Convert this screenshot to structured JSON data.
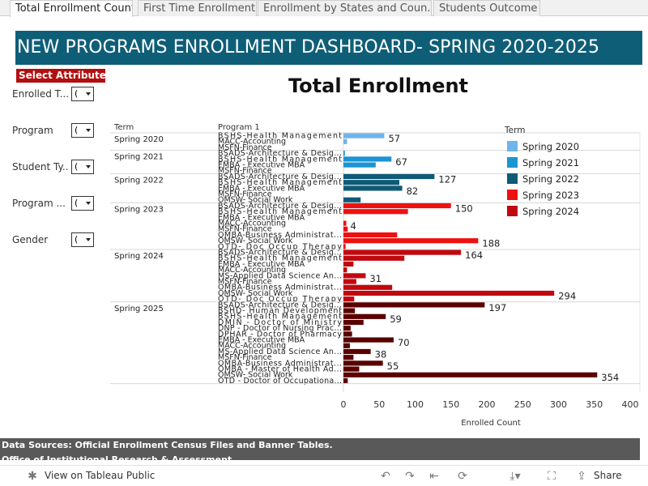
{
  "tabs": [
    "Total Enrollment Count",
    "First Time Enrollment",
    "Enrollment by States and Coun...",
    "Students Outcome"
  ],
  "header": {
    "title": "NEW PROGRAMS ENROLLMENT DASHBOARD- SPRING 2020-2025"
  },
  "filters": {
    "heading": "Select  Attributes",
    "items": [
      {
        "label": "Enrolled T...",
        "value": "("
      },
      {
        "label": "Program",
        "value": "("
      },
      {
        "label": "Student Ty...",
        "value": "("
      },
      {
        "label": "Program ...",
        "value": "("
      },
      {
        "label": "Gender",
        "value": "("
      }
    ]
  },
  "colors": {
    "header_bg": "#0f5e78",
    "select_attrs_bg": "#b20f0f",
    "Spring 2020": "#6fb4ea",
    "Spring 2021": "#1b94d3",
    "Spring 2022": "#0f5a77",
    "Spring 2023": "#ee1111",
    "Spring 2024": "#c0090f",
    "Spring 2025": "#5a0000"
  },
  "chart_data": {
    "type": "bar",
    "orientation": "horizontal",
    "title": "Total Enrollment",
    "row_headers": [
      "Term",
      "Program 1"
    ],
    "xlabel": "Enrolled Count",
    "xlim": [
      0,
      400
    ],
    "xticks": [
      0,
      50,
      100,
      150,
      200,
      250,
      300,
      350,
      400
    ],
    "legend": {
      "title": "Term",
      "placement": "right",
      "items": [
        "Spring 2020",
        "Spring 2021",
        "Spring 2022",
        "Spring 2023",
        "Spring 2024"
      ]
    },
    "groups": [
      {
        "term": "Spring 2020",
        "rows": [
          {
            "program": "BSHS-Health Management",
            "value": 57,
            "label": "57"
          },
          {
            "program": "MACC-Accounting",
            "value": 5
          },
          {
            "program": "MSFN-Finance",
            "value": 0
          }
        ]
      },
      {
        "term": "Spring 2021",
        "rows": [
          {
            "program": "BSADS-Architecture & Desig...",
            "value": 2
          },
          {
            "program": "BSHS-Health Management",
            "value": 67,
            "label": "67"
          },
          {
            "program": "EMBA - Executive MBA",
            "value": 45
          },
          {
            "program": "MSFN-Finance",
            "value": 0
          }
        ]
      },
      {
        "term": "Spring 2022",
        "rows": [
          {
            "program": "BSADS-Architecture & Desig...",
            "value": 127,
            "label": "127"
          },
          {
            "program": "BSHS-Health Management",
            "value": 78
          },
          {
            "program": "EMBA - Executive MBA",
            "value": 82,
            "label": "82"
          },
          {
            "program": "MSFN-Finance",
            "value": 0
          },
          {
            "program": "OMSW- Social Work",
            "value": 24
          }
        ]
      },
      {
        "term": "Spring 2023",
        "rows": [
          {
            "program": "BSADS-Architecture & Desig...",
            "value": 150,
            "label": "150"
          },
          {
            "program": "BSHS-Health Management",
            "value": 90
          },
          {
            "program": "EMBA - Executive MBA",
            "value": 0
          },
          {
            "program": "MACC-Accounting",
            "value": 4,
            "label": "4"
          },
          {
            "program": "MSFN-Finance",
            "value": 6
          },
          {
            "program": "OMBA-Business Administrat...",
            "value": 75
          },
          {
            "program": "OMSW- Social Work",
            "value": 188,
            "label": "188"
          },
          {
            "program": "OTD- Doc Occup Therapy",
            "value": 3
          }
        ]
      },
      {
        "term": "Spring 2024",
        "rows": [
          {
            "program": "BSADS-Architecture & Desig...",
            "value": 164,
            "label": "164"
          },
          {
            "program": "BSHS-Health Management",
            "value": 85
          },
          {
            "program": "EMBA - Executive MBA",
            "value": 14
          },
          {
            "program": "MACC-Accounting",
            "value": 5
          },
          {
            "program": "MS-Applied Data Science An...",
            "value": 31,
            "label": "31"
          },
          {
            "program": "MSFN-Finance",
            "value": 18
          },
          {
            "program": "OMBA-Business Administrat...",
            "value": 68
          },
          {
            "program": "OMSW- Social Work",
            "value": 294,
            "label": "294"
          },
          {
            "program": "OTD- Doc Occup Therapy",
            "value": 15
          }
        ]
      },
      {
        "term": "Spring 2025",
        "rows": [
          {
            "program": "BSADS-Architecture & Desig...",
            "value": 197,
            "label": "197"
          },
          {
            "program": "BSHD- Human Development",
            "value": 16
          },
          {
            "program": "BSHS-Health Management",
            "value": 59,
            "label": "59"
          },
          {
            "program": "DMIN - Doctor of Ministry",
            "value": 28
          },
          {
            "program": "DNP - Doctor of Nursing Prac...",
            "value": 10
          },
          {
            "program": "DPHAR - Doctor of Pharmacy",
            "value": 12
          },
          {
            "program": "EMBA - Executive MBA",
            "value": 70,
            "label": "70"
          },
          {
            "program": "MACC-Accounting",
            "value": 9
          },
          {
            "program": "MS-Applied Data Science An...",
            "value": 38,
            "label": "38"
          },
          {
            "program": "MSFN-Finance",
            "value": 14
          },
          {
            "program": "OMBA-Business Administrat...",
            "value": 55,
            "label": "55"
          },
          {
            "program": "OMBA - Master of Health Ad...",
            "value": 22
          },
          {
            "program": "OMSW- Social Work",
            "value": 354,
            "label": "354"
          },
          {
            "program": "OTD - Doctor of Occupationa...",
            "value": 6
          }
        ]
      }
    ]
  },
  "footer": {
    "sources_line1": "Data Sources: Official Enrollment Census  Files and Banner Tables.",
    "sources_line2": "Office of Institutional Research & Assessment"
  },
  "toolbar": {
    "view_label": "View on Tableau Public",
    "share_label": "Share"
  }
}
